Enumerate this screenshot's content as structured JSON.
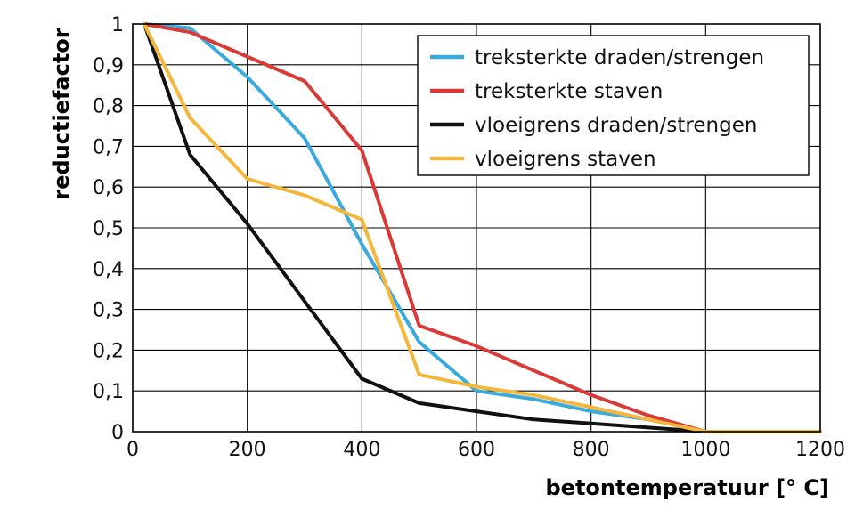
{
  "chart_data": {
    "type": "line",
    "xlabel": "betontemperatuur [° C]",
    "ylabel": "reductiefactor",
    "xlim": [
      0,
      1200
    ],
    "ylim": [
      0,
      1
    ],
    "x_ticks": [
      0,
      200,
      400,
      600,
      800,
      1000,
      1200
    ],
    "y_ticks": [
      0,
      0.1,
      0.2,
      0.3,
      0.4,
      0.5,
      0.6,
      0.7,
      0.8,
      0.9,
      1
    ],
    "y_tick_labels": [
      "0",
      "0,1",
      "0,2",
      "0,3",
      "0,4",
      "0,5",
      "0,6",
      "0,7",
      "0,8",
      "0,9",
      "1"
    ],
    "x_tick_labels": [
      "0",
      "200",
      "400",
      "600",
      "800",
      "1000",
      "1200"
    ],
    "grid": true,
    "legend_position": "top-right",
    "series": [
      {
        "name": "treksterkte draden/strengen",
        "color": "#3aa9dc",
        "points": [
          [
            20,
            1.0
          ],
          [
            100,
            0.99
          ],
          [
            200,
            0.87
          ],
          [
            300,
            0.72
          ],
          [
            400,
            0.46
          ],
          [
            500,
            0.22
          ],
          [
            600,
            0.1
          ],
          [
            700,
            0.08
          ],
          [
            800,
            0.05
          ],
          [
            900,
            0.03
          ],
          [
            1000,
            0.0
          ],
          [
            1200,
            0.0
          ]
        ]
      },
      {
        "name": "treksterkte staven",
        "color": "#d93a37",
        "points": [
          [
            20,
            1.0
          ],
          [
            100,
            0.98
          ],
          [
            200,
            0.92
          ],
          [
            300,
            0.86
          ],
          [
            400,
            0.69
          ],
          [
            500,
            0.26
          ],
          [
            600,
            0.21
          ],
          [
            700,
            0.15
          ],
          [
            800,
            0.09
          ],
          [
            900,
            0.04
          ],
          [
            1000,
            0.0
          ],
          [
            1200,
            0.0
          ]
        ]
      },
      {
        "name": "vloeigrens draden/strengen",
        "color": "#111111",
        "points": [
          [
            20,
            1.0
          ],
          [
            100,
            0.68
          ],
          [
            200,
            0.51
          ],
          [
            300,
            0.32
          ],
          [
            400,
            0.13
          ],
          [
            500,
            0.07
          ],
          [
            600,
            0.05
          ],
          [
            700,
            0.03
          ],
          [
            800,
            0.02
          ],
          [
            900,
            0.01
          ],
          [
            1000,
            0.0
          ],
          [
            1200,
            0.0
          ]
        ]
      },
      {
        "name": "vloeigrens staven",
        "color": "#f4b73b",
        "points": [
          [
            20,
            1.0
          ],
          [
            100,
            0.77
          ],
          [
            200,
            0.62
          ],
          [
            300,
            0.58
          ],
          [
            400,
            0.52
          ],
          [
            500,
            0.14
          ],
          [
            600,
            0.11
          ],
          [
            700,
            0.09
          ],
          [
            800,
            0.06
          ],
          [
            900,
            0.03
          ],
          [
            1000,
            0.0
          ],
          [
            1200,
            0.0
          ]
        ]
      }
    ]
  }
}
